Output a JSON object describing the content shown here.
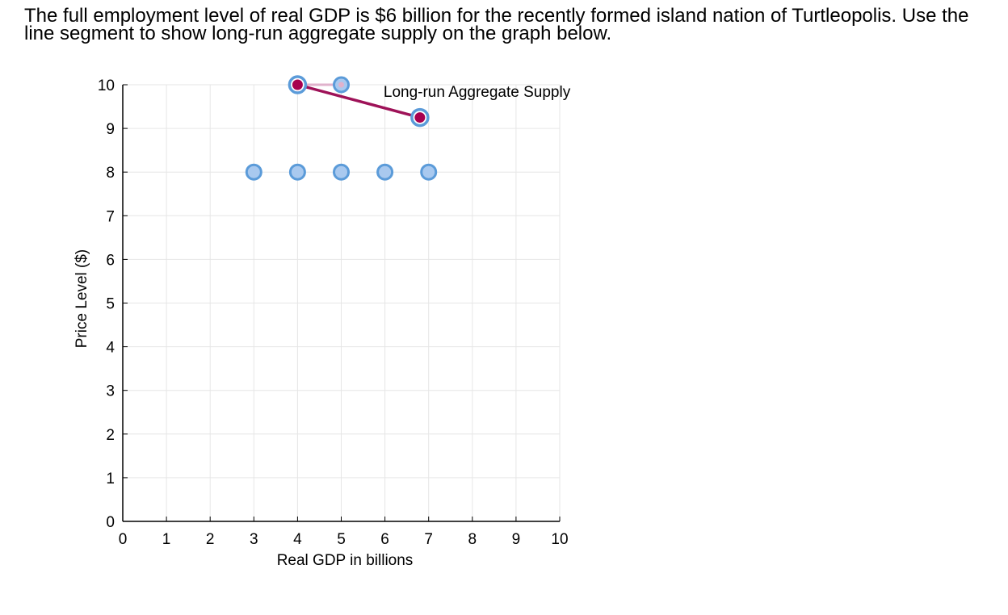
{
  "question": {
    "text": "The full employment level of real GDP is $6 billion for the recently formed island nation of Turtleopolis. Use the line segment to show long-run aggregate supply on the graph below."
  },
  "colors": {
    "grid": "#e6e6e6",
    "axis": "#000000",
    "handle_fill": "#a9c9ef",
    "handle_stroke": "#5b9bd9",
    "segment": "#9e1258",
    "segment_ghost": "#e0b2cc",
    "endpoint_fill": "#a7004f"
  },
  "chart_data": {
    "type": "line",
    "title": "",
    "xlabel": "Real GDP in billions",
    "ylabel": "Price Level ($)",
    "xlim": [
      0,
      10
    ],
    "ylim": [
      0,
      10
    ],
    "grid": true,
    "x_ticks": [
      "0",
      "1",
      "2",
      "3",
      "4",
      "5",
      "6",
      "7",
      "8",
      "9",
      "10"
    ],
    "y_ticks": [
      "0",
      "1",
      "2",
      "3",
      "4",
      "5",
      "6",
      "7",
      "8",
      "9",
      "10"
    ],
    "series": [
      {
        "name": "Long-run Aggregate Supply",
        "label": "Long-run Aggregate Supply",
        "points": [
          {
            "x": 4,
            "y": 10
          },
          {
            "x": 6.8,
            "y": 9.25
          }
        ]
      }
    ],
    "ghost_segment": [
      {
        "x": 4,
        "y": 10
      },
      {
        "x": 5,
        "y": 10
      }
    ],
    "palette_points": [
      {
        "x": 3,
        "y": 8
      },
      {
        "x": 4,
        "y": 8
      },
      {
        "x": 5,
        "y": 8
      },
      {
        "x": 6,
        "y": 8
      },
      {
        "x": 7,
        "y": 8
      }
    ],
    "unplaced_handle": {
      "x": 5,
      "y": 10
    }
  }
}
